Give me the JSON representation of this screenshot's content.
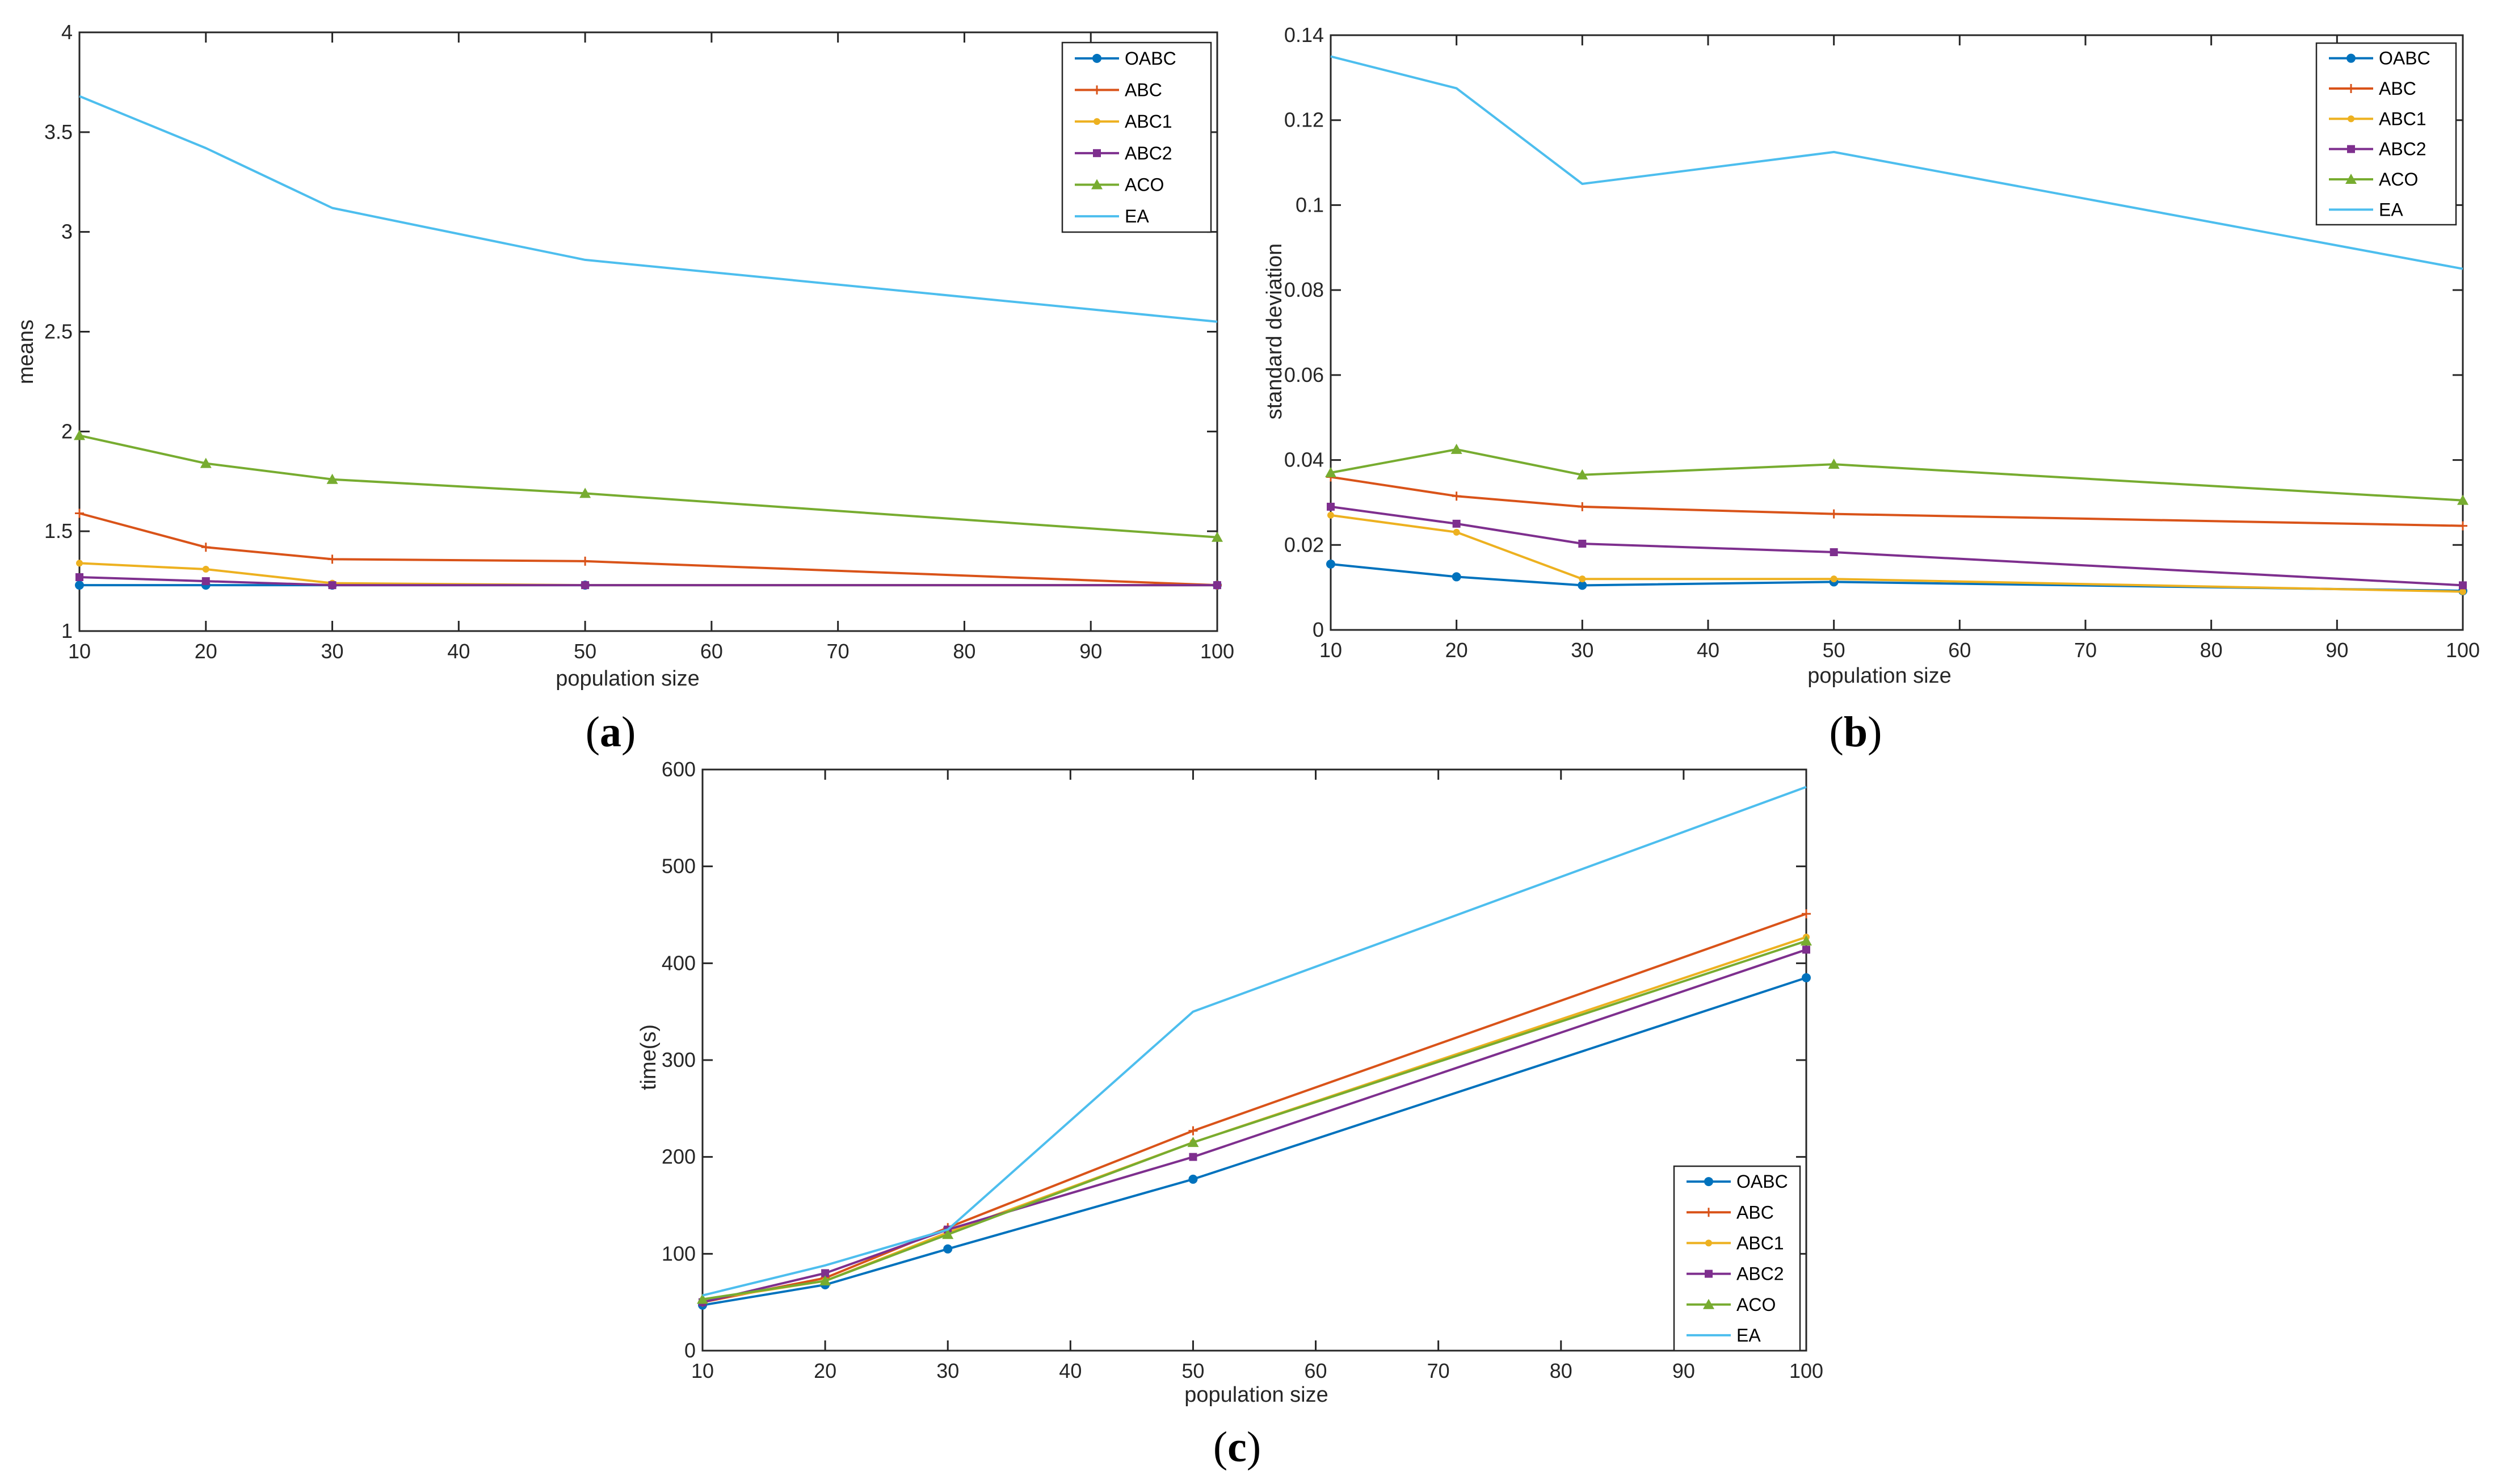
{
  "colors": {
    "OABC": "#0072BD",
    "ABC": "#D95319",
    "ABC1": "#EDB120",
    "ABC2": "#7E2F8E",
    "ACO": "#77AC30",
    "EA": "#4DBEEE"
  },
  "chart_data": [
    {
      "type": "line",
      "caption": "a",
      "xlabel": "population size",
      "ylabel": "means",
      "x": [
        10,
        20,
        30,
        50,
        100
      ],
      "xlim": [
        10,
        100
      ],
      "ylim": [
        1,
        4
      ],
      "xticks": [
        "10",
        "20",
        "30",
        "40",
        "50",
        "60",
        "70",
        "80",
        "90",
        "100"
      ],
      "xtick_values": [
        10,
        20,
        30,
        40,
        50,
        60,
        70,
        80,
        90,
        100
      ],
      "yticks": [
        "1",
        "1.5",
        "2",
        "2.5",
        "3",
        "3.5",
        "4"
      ],
      "ytick_values": [
        1,
        1.5,
        2,
        2.5,
        3,
        3.5,
        4
      ],
      "legend_position": "top-right",
      "series": [
        {
          "name": "OABC",
          "marker": "circle",
          "values": [
            1.23,
            1.23,
            1.23,
            1.23,
            1.23
          ]
        },
        {
          "name": "ABC",
          "marker": "plus",
          "values": [
            1.59,
            1.42,
            1.36,
            1.35,
            1.23
          ]
        },
        {
          "name": "ABC1",
          "marker": "dot",
          "values": [
            1.34,
            1.31,
            1.24,
            1.23,
            1.23
          ]
        },
        {
          "name": "ABC2",
          "marker": "square",
          "values": [
            1.27,
            1.25,
            1.23,
            1.23,
            1.23
          ]
        },
        {
          "name": "ACO",
          "marker": "triangle",
          "values": [
            1.98,
            1.84,
            1.76,
            1.69,
            1.47
          ]
        },
        {
          "name": "EA",
          "marker": "none",
          "values": [
            3.68,
            3.42,
            3.12,
            2.86,
            2.55
          ]
        }
      ]
    },
    {
      "type": "line",
      "caption": "b",
      "xlabel": "population size",
      "ylabel": "standard deviation",
      "x": [
        10,
        20,
        30,
        50,
        100
      ],
      "xlim": [
        10,
        100
      ],
      "ylim": [
        0,
        0.14
      ],
      "xticks": [
        "10",
        "20",
        "30",
        "40",
        "50",
        "60",
        "70",
        "80",
        "90",
        "100"
      ],
      "xtick_values": [
        10,
        20,
        30,
        40,
        50,
        60,
        70,
        80,
        90,
        100
      ],
      "yticks": [
        "0",
        "0.02",
        "0.04",
        "0.06",
        "0.08",
        "0.1",
        "0.12",
        "0.14"
      ],
      "ytick_values": [
        0,
        0.02,
        0.04,
        0.06,
        0.08,
        0.1,
        0.12,
        0.14
      ],
      "legend_position": "top-right",
      "series": [
        {
          "name": "OABC",
          "marker": "circle",
          "values": [
            0.0155,
            0.0125,
            0.0105,
            0.0113,
            0.0092
          ]
        },
        {
          "name": "ABC",
          "marker": "plus",
          "values": [
            0.036,
            0.0315,
            0.029,
            0.0273,
            0.0245
          ]
        },
        {
          "name": "ABC1",
          "marker": "dot",
          "values": [
            0.027,
            0.023,
            0.012,
            0.012,
            0.009
          ]
        },
        {
          "name": "ABC2",
          "marker": "square",
          "values": [
            0.029,
            0.025,
            0.0203,
            0.0183,
            0.0105
          ]
        },
        {
          "name": "ACO",
          "marker": "triangle",
          "values": [
            0.037,
            0.0425,
            0.0365,
            0.039,
            0.0305
          ]
        },
        {
          "name": "EA",
          "marker": "none",
          "values": [
            0.135,
            0.1275,
            0.105,
            0.1125,
            0.085
          ]
        }
      ]
    },
    {
      "type": "line",
      "caption": "c",
      "xlabel": "population size",
      "ylabel": "time(s)",
      "x": [
        10,
        20,
        30,
        50,
        100
      ],
      "xlim": [
        10,
        100
      ],
      "ylim": [
        0,
        600
      ],
      "xticks": [
        "10",
        "20",
        "30",
        "40",
        "50",
        "60",
        "70",
        "80",
        "90",
        "100"
      ],
      "xtick_values": [
        10,
        20,
        30,
        40,
        50,
        60,
        70,
        80,
        90,
        100
      ],
      "yticks": [
        "0",
        "100",
        "200",
        "300",
        "400",
        "500",
        "600"
      ],
      "ytick_values": [
        0,
        100,
        200,
        300,
        400,
        500,
        600
      ],
      "legend_position": "bottom-right",
      "series": [
        {
          "name": "OABC",
          "marker": "circle",
          "values": [
            47,
            68,
            105,
            177,
            385
          ]
        },
        {
          "name": "ABC",
          "marker": "plus",
          "values": [
            50,
            75,
            127,
            227,
            451
          ]
        },
        {
          "name": "ABC1",
          "marker": "dot",
          "values": [
            52,
            72,
            122,
            215,
            427
          ]
        },
        {
          "name": "ABC2",
          "marker": "square",
          "values": [
            50,
            80,
            125,
            200,
            414
          ]
        },
        {
          "name": "ACO",
          "marker": "triangle",
          "values": [
            53,
            72,
            120,
            215,
            423
          ]
        },
        {
          "name": "EA",
          "marker": "none",
          "values": [
            57,
            88,
            125,
            350,
            582
          ]
        }
      ]
    }
  ]
}
